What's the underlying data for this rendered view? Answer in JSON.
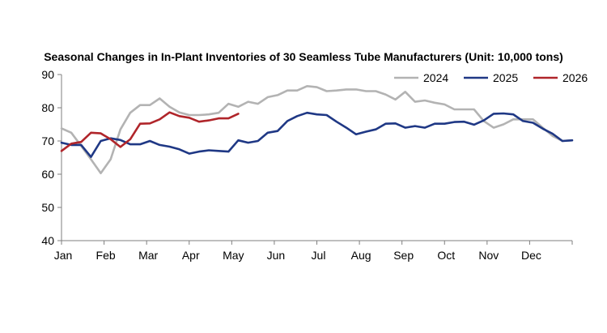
{
  "chart_data": {
    "type": "line",
    "title": "Seasonal Changes in In-Plant Inventories of 30 Seamless Tube Manufacturers (Unit: 10,000 tons)",
    "xlabel": "",
    "ylabel": "",
    "ylim": [
      40,
      90
    ],
    "yticks": [
      40,
      50,
      60,
      70,
      80,
      90
    ],
    "xlim": [
      0,
      52
    ],
    "month_labels": [
      "Jan",
      "Feb",
      "Mar",
      "Apr",
      "May",
      "Jun",
      "Jul",
      "Aug",
      "Sep",
      "Oct",
      "Nov",
      "Dec"
    ],
    "grid": false,
    "legend_position": "top-right",
    "series": [
      {
        "name": "2024",
        "color": "#b3b3b3",
        "points": [
          [
            0,
            73.8
          ],
          [
            1,
            72.5
          ],
          [
            2,
            68.5
          ],
          [
            3,
            64.5
          ],
          [
            4,
            60.3
          ],
          [
            5,
            64.5
          ],
          [
            6,
            73.5
          ],
          [
            7,
            78.5
          ],
          [
            8,
            80.8
          ],
          [
            9,
            80.8
          ],
          [
            10,
            82.8
          ],
          [
            11,
            80.3
          ],
          [
            12,
            78.6
          ],
          [
            13,
            77.8
          ],
          [
            14,
            77.8
          ],
          [
            15,
            78.0
          ],
          [
            16,
            78.5
          ],
          [
            17,
            81.2
          ],
          [
            18,
            80.3
          ],
          [
            19,
            81.8
          ],
          [
            20,
            81.2
          ],
          [
            21,
            83.2
          ],
          [
            22,
            83.8
          ],
          [
            23,
            85.2
          ],
          [
            24,
            85.2
          ],
          [
            25,
            86.5
          ],
          [
            26,
            86.2
          ],
          [
            27,
            85.0
          ],
          [
            28,
            85.2
          ],
          [
            29,
            85.5
          ],
          [
            30,
            85.5
          ],
          [
            31,
            85.0
          ],
          [
            32,
            85.0
          ],
          [
            33,
            84.0
          ],
          [
            34,
            82.5
          ],
          [
            35,
            84.8
          ],
          [
            36,
            81.8
          ],
          [
            37,
            82.2
          ],
          [
            38,
            81.5
          ],
          [
            39,
            81.0
          ],
          [
            40,
            79.5
          ],
          [
            41,
            79.5
          ],
          [
            42,
            79.5
          ],
          [
            43,
            76.0
          ],
          [
            44,
            74.0
          ],
          [
            45,
            75.0
          ],
          [
            46,
            76.5
          ],
          [
            47,
            76.5
          ],
          [
            48,
            76.5
          ],
          [
            49,
            74.0
          ],
          [
            50,
            71.5
          ],
          [
            51,
            70.0
          ],
          [
            52,
            70.2
          ]
        ]
      },
      {
        "name": "2025",
        "color": "#1f3885",
        "points": [
          [
            0,
            69.5
          ],
          [
            1,
            68.8
          ],
          [
            2,
            68.8
          ],
          [
            3,
            65.2
          ],
          [
            4,
            70.0
          ],
          [
            5,
            70.8
          ],
          [
            6,
            70.3
          ],
          [
            7,
            69.0
          ],
          [
            8,
            69.0
          ],
          [
            9,
            70.0
          ],
          [
            10,
            68.8
          ],
          [
            11,
            68.3
          ],
          [
            12,
            67.5
          ],
          [
            13,
            66.2
          ],
          [
            14,
            66.8
          ],
          [
            15,
            67.2
          ],
          [
            16,
            67.0
          ],
          [
            17,
            66.8
          ],
          [
            18,
            70.2
          ],
          [
            19,
            69.5
          ],
          [
            20,
            70.0
          ],
          [
            21,
            72.5
          ],
          [
            22,
            73.0
          ],
          [
            23,
            76.0
          ],
          [
            24,
            77.5
          ],
          [
            25,
            78.5
          ],
          [
            26,
            78.0
          ],
          [
            27,
            77.8
          ],
          [
            28,
            75.8
          ],
          [
            29,
            74.0
          ],
          [
            30,
            72.0
          ],
          [
            31,
            72.8
          ],
          [
            32,
            73.5
          ],
          [
            33,
            75.2
          ],
          [
            34,
            75.3
          ],
          [
            35,
            74.0
          ],
          [
            36,
            74.5
          ],
          [
            37,
            74.0
          ],
          [
            38,
            75.2
          ],
          [
            39,
            75.2
          ],
          [
            40,
            75.7
          ],
          [
            41,
            75.8
          ],
          [
            42,
            74.9
          ],
          [
            43,
            76.2
          ],
          [
            44,
            78.2
          ],
          [
            45,
            78.3
          ],
          [
            46,
            78.0
          ],
          [
            47,
            76.0
          ],
          [
            48,
            75.5
          ],
          [
            49,
            73.7
          ],
          [
            50,
            72.2
          ],
          [
            51,
            70.0
          ],
          [
            52,
            70.2
          ]
        ]
      },
      {
        "name": "2026",
        "color": "#b0252a",
        "points": [
          [
            0,
            67.0
          ],
          [
            1,
            69.2
          ],
          [
            2,
            69.7
          ],
          [
            3,
            72.5
          ],
          [
            4,
            72.3
          ],
          [
            5,
            70.5
          ],
          [
            6,
            68.2
          ],
          [
            7,
            70.5
          ],
          [
            8,
            75.2
          ],
          [
            9,
            75.3
          ],
          [
            10,
            76.5
          ],
          [
            11,
            78.6
          ],
          [
            12,
            77.5
          ],
          [
            13,
            77.0
          ],
          [
            14,
            75.8
          ],
          [
            15,
            76.2
          ],
          [
            16,
            76.8
          ],
          [
            17,
            76.8
          ],
          [
            18,
            78.2
          ]
        ]
      }
    ]
  }
}
